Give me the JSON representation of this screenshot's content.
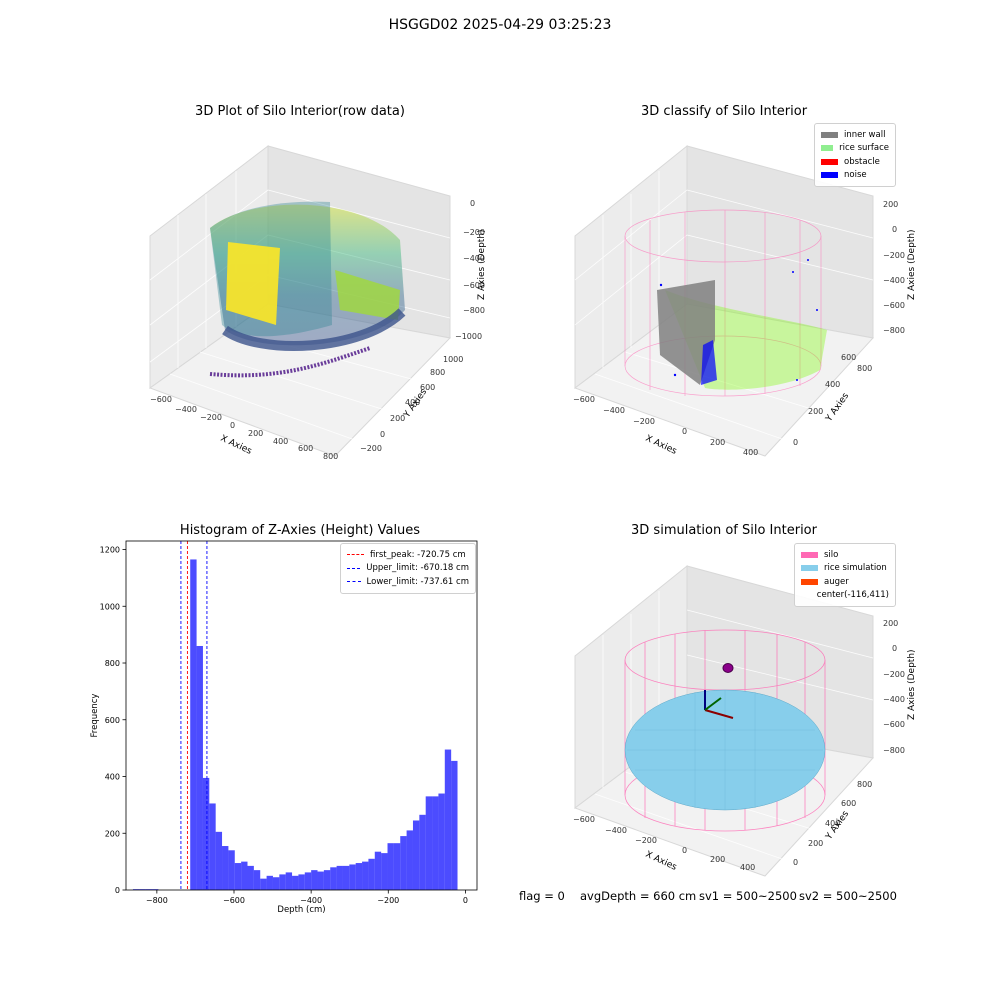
{
  "figure": {
    "suptitle": "HSGGD02 2025-04-29 03:25:23"
  },
  "panels": {
    "raw": {
      "title": "3D Plot of Silo Interior(row data)",
      "xlabel": "X Axies",
      "ylabel": "Y Axies",
      "zlabel": "Z Axies (Depth)",
      "xticks": [
        "−600",
        "−400",
        "−200",
        "0",
        "200",
        "400",
        "600",
        "800"
      ],
      "yticks": [
        "−200",
        "0",
        "200",
        "400",
        "600",
        "800",
        "1000"
      ],
      "zticks": [
        "0",
        "−200",
        "−400",
        "−600",
        "−800",
        "−1000"
      ]
    },
    "classify": {
      "title": "3D classify of Silo Interior",
      "xlabel": "X Axies",
      "ylabel": "Y Axies",
      "zlabel": "Z Axies (Depth)",
      "xticks": [
        "−600",
        "−400",
        "−200",
        "0",
        "200",
        "400"
      ],
      "yticks": [
        "0",
        "200",
        "400",
        "600",
        "800"
      ],
      "zticks": [
        "200",
        "0",
        "−200",
        "−400",
        "−600",
        "−800"
      ],
      "legend": [
        {
          "label": "inner wall",
          "color": "#808080"
        },
        {
          "label": "rice surface",
          "color": "#90ee90"
        },
        {
          "label": "obstacle",
          "color": "#ff0000"
        },
        {
          "label": "noise",
          "color": "#0000ff"
        }
      ]
    },
    "simulation": {
      "title": "3D simulation of Silo Interior",
      "xlabel": "X Axies",
      "ylabel": "Y Axies",
      "zlabel": "Z Axies (Depth)",
      "xticks": [
        "−600",
        "−400",
        "−200",
        "0",
        "200",
        "400"
      ],
      "yticks": [
        "0",
        "200",
        "400",
        "600",
        "800"
      ],
      "zticks": [
        "200",
        "0",
        "−200",
        "−400",
        "−600",
        "−800"
      ],
      "legend": [
        {
          "label": "silo",
          "color": "#ff69b4"
        },
        {
          "label": "rice simulation",
          "color": "#87ceeb"
        },
        {
          "label": "auger",
          "color": "#ff4500"
        },
        {
          "label": "center(-116,411)",
          "color": ""
        }
      ]
    }
  },
  "footer": {
    "flag": "flag = 0",
    "avg_depth": "avgDepth = 660 cm",
    "sv1": "sv1 = 500~2500",
    "sv2": "sv2 = 500~2500"
  },
  "chart_data": {
    "type": "bar",
    "title": "Histogram of Z-Axies (Height) Values",
    "xlabel": "Depth (cm)",
    "ylabel": "Frequency",
    "xlim": [
      -880,
      30
    ],
    "ylim": [
      0,
      1230
    ],
    "xticks": [
      -800,
      -600,
      -400,
      -200,
      0
    ],
    "yticks": [
      0,
      200,
      400,
      600,
      800,
      1000,
      1200
    ],
    "bar_color": "#0000ff",
    "bin_width": 16.5,
    "bin_left_edges": [
      -862,
      -845.5,
      -829,
      -812.5,
      -796,
      -779.5,
      -763,
      -746.5,
      -730,
      -713.5,
      -697,
      -680.5,
      -664,
      -647.5,
      -631,
      -614.5,
      -598,
      -581.5,
      -565,
      -548.5,
      -532,
      -515.5,
      -499,
      -482.5,
      -466,
      -449.5,
      -433,
      -416.5,
      -400,
      -383.5,
      -367,
      -350.5,
      -334,
      -317.5,
      -301,
      -284.5,
      -268,
      -251.5,
      -235,
      -218.5,
      -202,
      -185.5,
      -169,
      -152.5,
      -136,
      -119.5,
      -103,
      -86.5,
      -70,
      -53.5,
      -37,
      -20.5
    ],
    "values": [
      3,
      3,
      3,
      3,
      0,
      0,
      0,
      0,
      0,
      1165,
      860,
      395,
      305,
      205,
      155,
      140,
      95,
      100,
      85,
      70,
      40,
      50,
      45,
      55,
      62,
      50,
      55,
      62,
      70,
      65,
      70,
      80,
      85,
      85,
      90,
      95,
      100,
      110,
      135,
      130,
      165,
      165,
      190,
      210,
      245,
      265,
      330,
      330,
      340,
      495,
      455,
      0
    ],
    "reference_lines": [
      {
        "name": "first_peak: -720.75 cm",
        "x": -720.75,
        "color": "#ff0000"
      },
      {
        "name": "Upper_limit: -670.18 cm",
        "x": -670.18,
        "color": "#0000ff"
      },
      {
        "name": "Lower_limit: -737.61 cm",
        "x": -737.61,
        "color": "#0000ff"
      }
    ],
    "legend_position": "top-right",
    "grid": false
  }
}
